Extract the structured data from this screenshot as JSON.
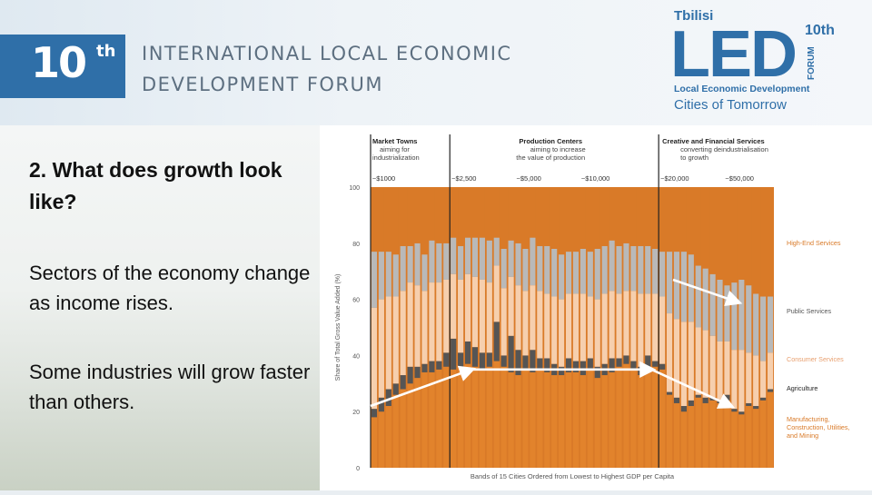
{
  "header": {
    "badge_number": "10",
    "badge_suffix": "th",
    "title_line1": "INTERNATIONAL LOCAL ECONOMIC",
    "title_line2": "DEVELOPMENT FORUM"
  },
  "logo": {
    "city": "Tbilisi",
    "acronym": "LED",
    "edition": "10th",
    "forum_word": "FORUM",
    "subtitle": "Local Economic Development",
    "tagline": "Cities of Tomorrow"
  },
  "content": {
    "question": "2. What does growth look like?",
    "paragraph1": "Sectors of the economy change as income rises.",
    "paragraph2": "Some industries will grow faster than others."
  },
  "colors": {
    "manufacturing": "#e2832c",
    "agriculture": "#555555",
    "consumer": "#f6cfae",
    "public": "#b9b9b9",
    "highend": "#d97a28",
    "accent_blue": "#2f6fa8"
  },
  "chart_data": {
    "type": "bar",
    "stacked": true,
    "ylabel": "Share of Total Gross Value Added (%)",
    "xlabel": "Bands of 15 Cities Ordered from Lowest to Highest GDP per Capita",
    "ylim": [
      0,
      100
    ],
    "yticks": [
      "0",
      "20",
      "40",
      "60",
      "80",
      "100"
    ],
    "gdp_markers": [
      "~$1000",
      "~$2,500",
      "~$5,000",
      "~$10,000",
      "~$20,000",
      "~$50,000"
    ],
    "stages": [
      {
        "name": "Market Towns",
        "desc1": "aiming for",
        "desc2": "industrialization"
      },
      {
        "name": "Production Centers",
        "desc1": "aiming to increase",
        "desc2": "the value of production"
      },
      {
        "name": "Creative and Financial Services",
        "desc1": "converting deindustrialisation",
        "desc2": "to growth"
      }
    ],
    "legend": [
      "High-End Services",
      "Public Services",
      "Consumer Services",
      "Agriculture",
      "Manufacturing, Construction, Utilities, and Mining"
    ],
    "series": [
      {
        "name": "Manufacturing, Construction, Utilities, and Mining",
        "values": [
          18,
          20,
          22,
          26,
          28,
          30,
          32,
          34,
          34,
          35,
          36,
          35,
          36,
          37,
          36,
          35,
          36,
          38,
          36,
          34,
          33,
          35,
          34,
          35,
          34,
          33,
          33,
          34,
          34,
          33,
          35,
          32,
          33,
          34,
          36,
          37,
          35,
          33,
          36,
          36,
          35,
          26,
          23,
          20,
          22,
          25,
          23,
          24,
          23,
          24,
          20,
          19,
          22,
          21,
          24,
          27
        ]
      },
      {
        "name": "Agriculture",
        "values": [
          3,
          5,
          6,
          4,
          5,
          6,
          4,
          3,
          4,
          3,
          5,
          11,
          5,
          8,
          7,
          6,
          5,
          14,
          4,
          13,
          9,
          5,
          8,
          4,
          5,
          4,
          3,
          5,
          4,
          5,
          4,
          4,
          4,
          5,
          3,
          3,
          3,
          3,
          4,
          2,
          2,
          1,
          2,
          2,
          2,
          1,
          2,
          1,
          1,
          2,
          1,
          1,
          1,
          1,
          1,
          1
        ]
      },
      {
        "name": "Consumer Services",
        "values": [
          36,
          35,
          33,
          31,
          30,
          30,
          29,
          26,
          28,
          28,
          26,
          23,
          26,
          24,
          25,
          26,
          25,
          20,
          24,
          21,
          23,
          23,
          23,
          24,
          23,
          24,
          24,
          23,
          24,
          24,
          22,
          24,
          25,
          24,
          23,
          23,
          25,
          26,
          22,
          24,
          24,
          28,
          28,
          30,
          28,
          24,
          24,
          22,
          21,
          19,
          21,
          22,
          18,
          18,
          13,
          13
        ]
      },
      {
        "name": "Public Services",
        "values": [
          20,
          17,
          16,
          15,
          16,
          13,
          15,
          13,
          15,
          14,
          13,
          13,
          12,
          13,
          14,
          15,
          15,
          10,
          14,
          13,
          15,
          15,
          17,
          16,
          17,
          17,
          16,
          15,
          15,
          16,
          16,
          18,
          17,
          18,
          17,
          17,
          16,
          17,
          17,
          16,
          16,
          22,
          24,
          25,
          24,
          22,
          22,
          22,
          22,
          20,
          24,
          25,
          24,
          22,
          23,
          20
        ]
      },
      {
        "name": "High-End Services",
        "values": [
          23,
          23,
          23,
          24,
          21,
          21,
          20,
          24,
          19,
          20,
          20,
          18,
          21,
          18,
          18,
          18,
          19,
          18,
          22,
          19,
          20,
          22,
          18,
          21,
          21,
          22,
          24,
          23,
          23,
          22,
          23,
          22,
          21,
          19,
          21,
          20,
          21,
          21,
          21,
          22,
          23,
          23,
          23,
          23,
          24,
          28,
          29,
          31,
          33,
          35,
          34,
          33,
          35,
          38,
          39,
          39
        ]
      }
    ],
    "arrows": [
      {
        "from": [
          0,
          22
        ],
        "to": [
          14,
          35
        ]
      },
      {
        "from": [
          14,
          35
        ],
        "to": [
          39,
          35
        ]
      },
      {
        "from": [
          39,
          35
        ],
        "to": [
          50,
          22
        ]
      },
      {
        "from": [
          42,
          67
        ],
        "to": [
          51,
          59
        ]
      }
    ],
    "dividers": [
      11,
      40
    ]
  }
}
